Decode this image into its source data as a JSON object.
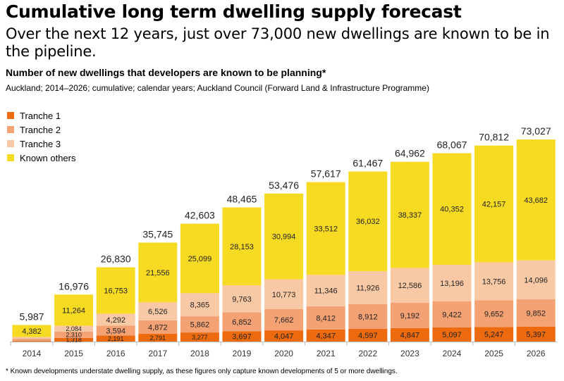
{
  "title": "Cumulative long term dwelling supply forecast",
  "subtitle": "Over the next 12 years, just over 73,000 new dwellings are known to be in the pipeline.",
  "chart_heading": "Number of new dwellings that developers are known to be planning*",
  "source": "Auckland; 2014–2026; cumulative; calendar years; Auckland Council (Forward Land & Infrastructure Programme)",
  "footnote": "* Known developments understate dwelling supply, as these figures only capture known developments of 5 or more dwellings.",
  "chart_data": {
    "type": "bar",
    "stacked": true,
    "categories": [
      "2014",
      "2015",
      "2016",
      "2017",
      "2018",
      "2019",
      "2020",
      "2021",
      "2022",
      "2023",
      "2024",
      "2025",
      "2026"
    ],
    "series": [
      {
        "name": "Tranche 1",
        "color": "#EE6A0E",
        "values": [
          300,
          1318,
          2191,
          2791,
          3277,
          3697,
          4047,
          4347,
          4597,
          4847,
          5097,
          5247,
          5397
        ],
        "labels": [
          false,
          true,
          true,
          true,
          true,
          true,
          true,
          true,
          true,
          true,
          true,
          true,
          true
        ]
      },
      {
        "name": "Tranche 2",
        "color": "#F4A274",
        "values": [
          700,
          2310,
          3594,
          4872,
          5862,
          6852,
          7662,
          8412,
          8912,
          9192,
          9422,
          9652,
          9852
        ],
        "labels": [
          false,
          true,
          true,
          true,
          true,
          true,
          true,
          true,
          true,
          true,
          true,
          true,
          true
        ]
      },
      {
        "name": "Tranche 3",
        "color": "#F9C9A5",
        "values": [
          605,
          2084,
          4292,
          6526,
          8365,
          9763,
          10773,
          11346,
          11926,
          12586,
          13196,
          13756,
          14096
        ],
        "labels": [
          false,
          true,
          true,
          true,
          true,
          true,
          true,
          true,
          true,
          true,
          true,
          true,
          true
        ]
      },
      {
        "name": "Known others",
        "color": "#F7DA22",
        "values": [
          4382,
          11264,
          16753,
          21556,
          25099,
          28153,
          30994,
          33512,
          36032,
          38337,
          40352,
          42157,
          43682
        ],
        "labels": [
          true,
          true,
          true,
          true,
          true,
          true,
          true,
          true,
          true,
          true,
          true,
          true,
          true
        ]
      }
    ],
    "totals": [
      5987,
      16976,
      26830,
      35745,
      42603,
      48465,
      53476,
      57617,
      61467,
      64962,
      68067,
      70812,
      73027
    ],
    "ylim": [
      0,
      80000
    ],
    "grid": false,
    "legend_placement": "top-left"
  }
}
